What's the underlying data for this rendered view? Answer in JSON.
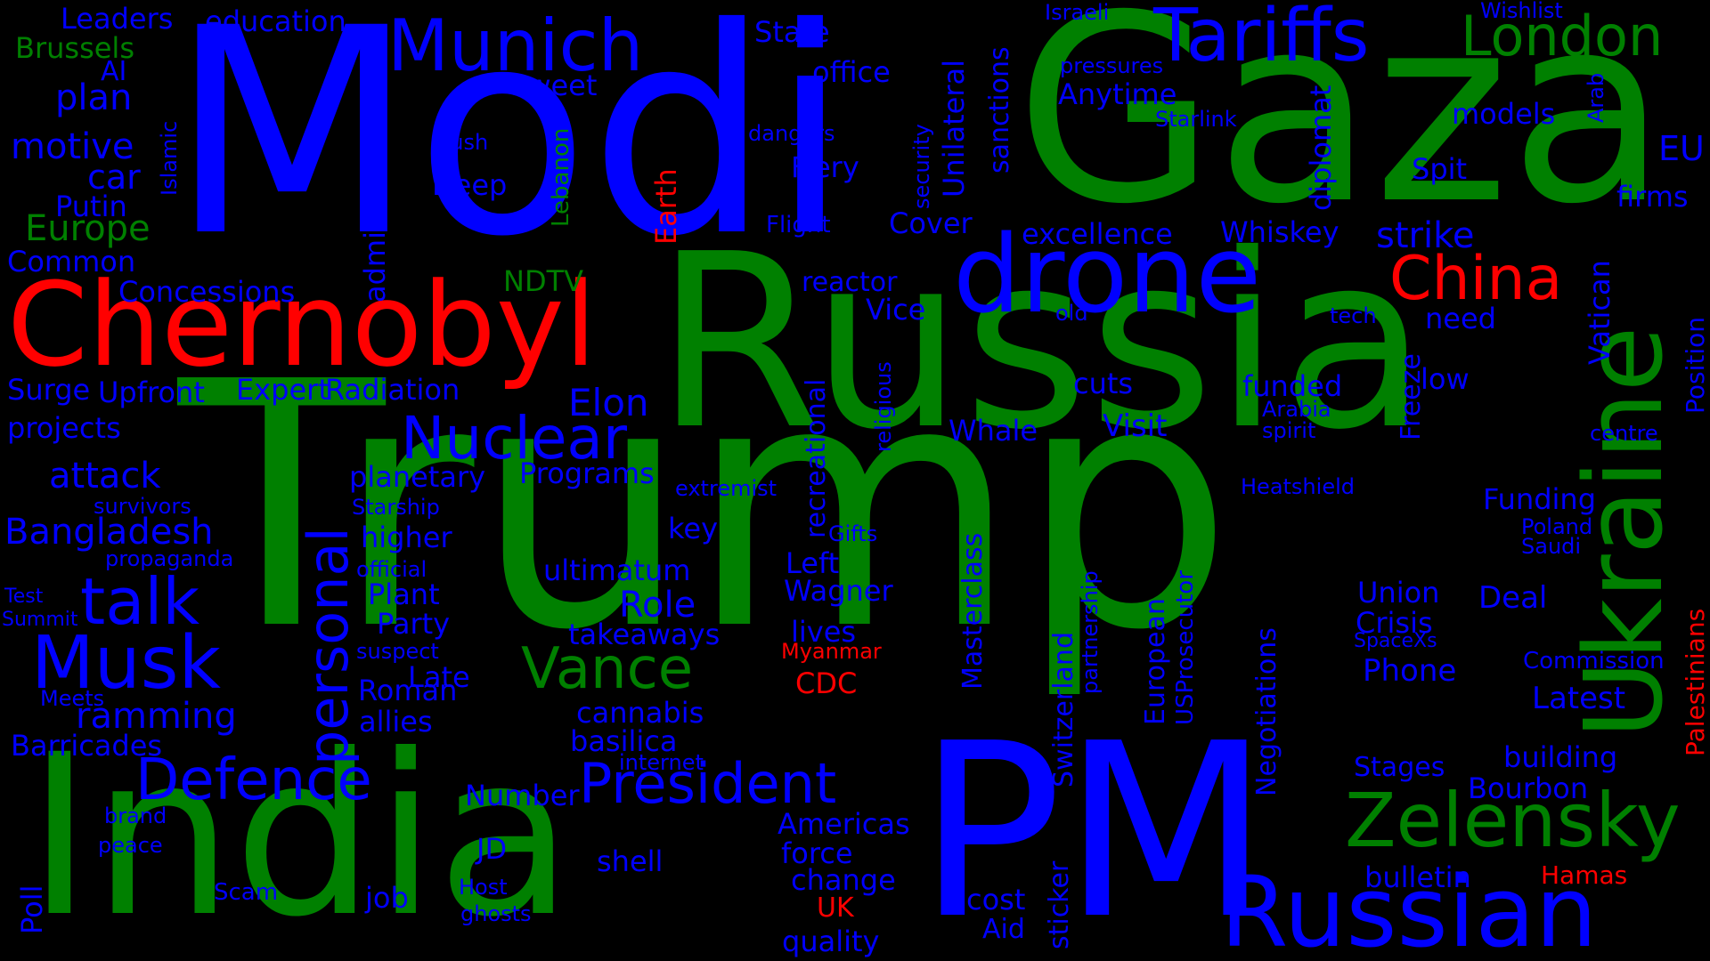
{
  "colors": {
    "background": "#000000",
    "blue": "#0000ff",
    "green": "#008000",
    "red": "#ff0000"
  },
  "words": [
    {
      "text": "Trump",
      "color": "green"
    },
    {
      "text": "Modi",
      "color": "blue"
    },
    {
      "text": "Gaza",
      "color": "green"
    },
    {
      "text": "Russia",
      "color": "green"
    },
    {
      "text": "India",
      "color": "green"
    },
    {
      "text": "PM",
      "color": "blue"
    },
    {
      "text": "Chernobyl",
      "color": "red"
    },
    {
      "text": "Ukraine",
      "color": "green"
    },
    {
      "text": "drone",
      "color": "blue"
    },
    {
      "text": "Russian",
      "color": "blue"
    },
    {
      "text": "Tariffs",
      "color": "blue"
    },
    {
      "text": "Munich",
      "color": "blue"
    },
    {
      "text": "London",
      "color": "green"
    },
    {
      "text": "China",
      "color": "red"
    },
    {
      "text": "Zelensky",
      "color": "green"
    },
    {
      "text": "President",
      "color": "blue"
    },
    {
      "text": "Musk",
      "color": "blue"
    },
    {
      "text": "Defence",
      "color": "blue"
    },
    {
      "text": "Nuclear",
      "color": "blue"
    },
    {
      "text": "personal",
      "color": "blue"
    },
    {
      "text": "Vance",
      "color": "green"
    },
    {
      "text": "talk",
      "color": "blue"
    },
    {
      "text": "strike",
      "color": "blue"
    },
    {
      "text": "Elon",
      "color": "blue"
    },
    {
      "text": "motive",
      "color": "blue"
    },
    {
      "text": "Europe",
      "color": "green"
    },
    {
      "text": "attack",
      "color": "blue"
    },
    {
      "text": "Bangladesh",
      "color": "blue"
    },
    {
      "text": "ramming",
      "color": "blue"
    },
    {
      "text": "plan",
      "color": "blue"
    },
    {
      "text": "car",
      "color": "blue"
    },
    {
      "text": "Putin",
      "color": "blue"
    },
    {
      "text": "EU",
      "color": "blue"
    },
    {
      "text": "firms",
      "color": "blue"
    },
    {
      "text": "Vatican",
      "color": "blue"
    },
    {
      "text": "Position",
      "color": "blue"
    },
    {
      "text": "Palestinians",
      "color": "red"
    },
    {
      "text": "Hamas",
      "color": "red"
    },
    {
      "text": "bulletin",
      "color": "blue"
    },
    {
      "text": "Bourbon",
      "color": "blue"
    },
    {
      "text": "building",
      "color": "blue"
    },
    {
      "text": "Latest",
      "color": "blue"
    },
    {
      "text": "Commission",
      "color": "blue"
    },
    {
      "text": "Deal",
      "color": "blue"
    },
    {
      "text": "Phone",
      "color": "blue"
    },
    {
      "text": "Crisis",
      "color": "blue"
    },
    {
      "text": "Union",
      "color": "blue"
    },
    {
      "text": "Funding",
      "color": "blue"
    },
    {
      "text": "Poland",
      "color": "blue"
    },
    {
      "text": "Saudi",
      "color": "blue"
    },
    {
      "text": "Stages",
      "color": "blue"
    },
    {
      "text": "SpaceXs",
      "color": "blue"
    },
    {
      "text": "Negotiations",
      "color": "blue"
    },
    {
      "text": "European",
      "color": "blue"
    },
    {
      "text": "USProsecutor",
      "color": "blue"
    },
    {
      "text": "partnership",
      "color": "blue"
    },
    {
      "text": "Switzerland",
      "color": "blue"
    },
    {
      "text": "Masterclass",
      "color": "blue"
    },
    {
      "text": "sticker",
      "color": "blue"
    },
    {
      "text": "cost",
      "color": "blue"
    },
    {
      "text": "Aid",
      "color": "blue"
    },
    {
      "text": "Heatshield",
      "color": "blue"
    },
    {
      "text": "centre",
      "color": "blue"
    },
    {
      "text": "low",
      "color": "blue"
    },
    {
      "text": "Freeze",
      "color": "blue"
    },
    {
      "text": "need",
      "color": "blue"
    },
    {
      "text": "tech",
      "color": "blue"
    },
    {
      "text": "spirit",
      "color": "blue"
    },
    {
      "text": "Arabia",
      "color": "blue"
    },
    {
      "text": "funded",
      "color": "blue"
    },
    {
      "text": "Visit",
      "color": "blue"
    },
    {
      "text": "cuts",
      "color": "blue"
    },
    {
      "text": "Whale",
      "color": "blue"
    },
    {
      "text": "religious",
      "color": "blue"
    },
    {
      "text": "recreational",
      "color": "blue"
    },
    {
      "text": "extremist",
      "color": "blue"
    },
    {
      "text": "Gifts",
      "color": "blue"
    },
    {
      "text": "old",
      "color": "blue"
    },
    {
      "text": "Vice",
      "color": "blue"
    },
    {
      "text": "reactor",
      "color": "blue"
    },
    {
      "text": "Whiskey",
      "color": "blue"
    },
    {
      "text": "excellence",
      "color": "blue"
    },
    {
      "text": "Cover",
      "color": "blue"
    },
    {
      "text": "Flight",
      "color": "blue"
    },
    {
      "text": "Fiery",
      "color": "blue"
    },
    {
      "text": "dangers",
      "color": "blue"
    },
    {
      "text": "security",
      "color": "blue"
    },
    {
      "text": "Unilateral",
      "color": "blue"
    },
    {
      "text": "sanctions",
      "color": "blue"
    },
    {
      "text": "office",
      "color": "blue"
    },
    {
      "text": "State",
      "color": "blue"
    },
    {
      "text": "Israeli",
      "color": "blue"
    },
    {
      "text": "pressures",
      "color": "blue"
    },
    {
      "text": "Anytime",
      "color": "blue"
    },
    {
      "text": "Starlink",
      "color": "blue"
    },
    {
      "text": "Wishlist",
      "color": "blue"
    },
    {
      "text": "Arab",
      "color": "blue"
    },
    {
      "text": "models",
      "color": "blue"
    },
    {
      "text": "Spit",
      "color": "blue"
    },
    {
      "text": "diplomat",
      "color": "blue"
    },
    {
      "text": "Leaders",
      "color": "blue"
    },
    {
      "text": "education",
      "color": "blue"
    },
    {
      "text": "Brussels",
      "color": "green"
    },
    {
      "text": "AI",
      "color": "blue"
    },
    {
      "text": "Islamic",
      "color": "blue"
    },
    {
      "text": "administration",
      "color": "blue"
    },
    {
      "text": "Sweet",
      "color": "blue"
    },
    {
      "text": "push",
      "color": "blue"
    },
    {
      "text": "Lebanon",
      "color": "green"
    },
    {
      "text": "Earth",
      "color": "red"
    },
    {
      "text": "Deep",
      "color": "blue"
    },
    {
      "text": "NDTV",
      "color": "green"
    },
    {
      "text": "Common",
      "color": "blue"
    },
    {
      "text": "Concessions",
      "color": "blue"
    },
    {
      "text": "Surge",
      "color": "blue"
    },
    {
      "text": "Upfront",
      "color": "blue"
    },
    {
      "text": "Expert",
      "color": "blue"
    },
    {
      "text": "Radiation",
      "color": "blue"
    },
    {
      "text": "projects",
      "color": "blue"
    },
    {
      "text": "planetary",
      "color": "blue"
    },
    {
      "text": "Programs",
      "color": "blue"
    },
    {
      "text": "survivors",
      "color": "blue"
    },
    {
      "text": "Starship",
      "color": "blue"
    },
    {
      "text": "higher",
      "color": "blue"
    },
    {
      "text": "propaganda",
      "color": "blue"
    },
    {
      "text": "official",
      "color": "blue"
    },
    {
      "text": "ultimatum",
      "color": "blue"
    },
    {
      "text": "key",
      "color": "blue"
    },
    {
      "text": "Test",
      "color": "blue"
    },
    {
      "text": "Summit",
      "color": "blue"
    },
    {
      "text": "Plant",
      "color": "blue"
    },
    {
      "text": "Party",
      "color": "blue"
    },
    {
      "text": "Role",
      "color": "blue"
    },
    {
      "text": "takeaways",
      "color": "blue"
    },
    {
      "text": "suspect",
      "color": "blue"
    },
    {
      "text": "Late",
      "color": "blue"
    },
    {
      "text": "Roman",
      "color": "blue"
    },
    {
      "text": "allies",
      "color": "blue"
    },
    {
      "text": "Meets",
      "color": "blue"
    },
    {
      "text": "Barricades",
      "color": "blue"
    },
    {
      "text": "cannabis",
      "color": "blue"
    },
    {
      "text": "basilica",
      "color": "blue"
    },
    {
      "text": "internet",
      "color": "blue"
    },
    {
      "text": "Number",
      "color": "blue"
    },
    {
      "text": "brand",
      "color": "blue"
    },
    {
      "text": "peace",
      "color": "blue"
    },
    {
      "text": "JD",
      "color": "blue"
    },
    {
      "text": "shell",
      "color": "blue"
    },
    {
      "text": "Poll",
      "color": "blue"
    },
    {
      "text": "Scam",
      "color": "blue"
    },
    {
      "text": "job",
      "color": "blue"
    },
    {
      "text": "Host",
      "color": "blue"
    },
    {
      "text": "ghosts",
      "color": "blue"
    },
    {
      "text": "Left",
      "color": "blue"
    },
    {
      "text": "Wagner",
      "color": "blue"
    },
    {
      "text": "lives",
      "color": "blue"
    },
    {
      "text": "Myanmar",
      "color": "red"
    },
    {
      "text": "CDC",
      "color": "red"
    },
    {
      "text": "Americas",
      "color": "blue"
    },
    {
      "text": "force",
      "color": "blue"
    },
    {
      "text": "change",
      "color": "blue"
    },
    {
      "text": "UK",
      "color": "red"
    },
    {
      "text": "quality",
      "color": "blue"
    }
  ]
}
